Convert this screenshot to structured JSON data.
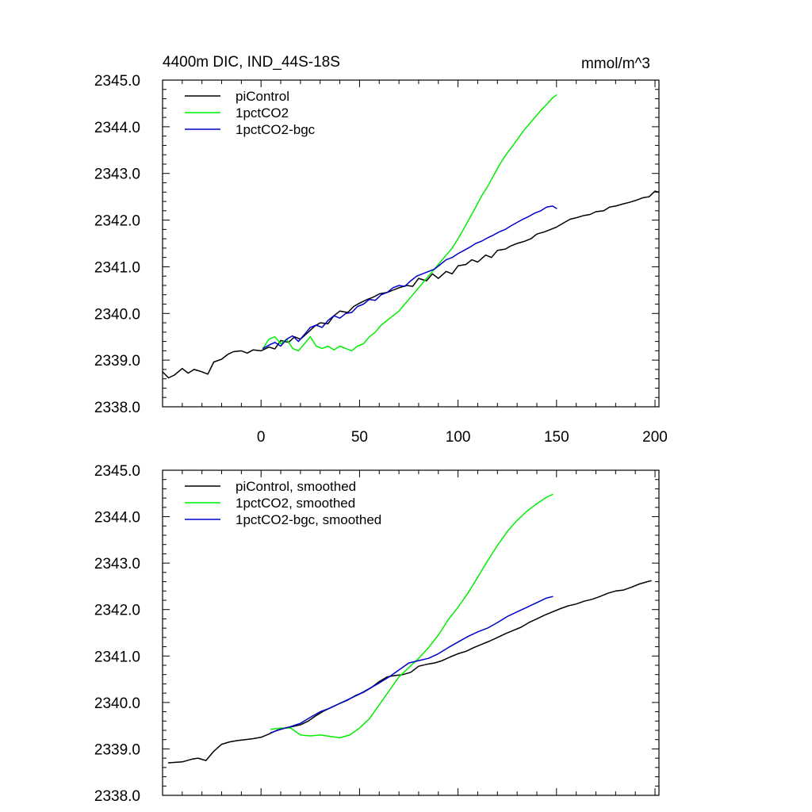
{
  "chart_data": [
    {
      "type": "line",
      "panel": "top",
      "title": "4400m DIC, IND_44S-18S",
      "units": "mmol/m^3",
      "xlabel": "",
      "ylabel": "",
      "xlim": [
        -50,
        202
      ],
      "ylim": [
        2338.0,
        2345.0
      ],
      "x_ticks": [
        0,
        50,
        100,
        150,
        200
      ],
      "x_tick_labels": [
        "0",
        "50",
        "100",
        "150",
        "200"
      ],
      "y_ticks": [
        2338.0,
        2339.0,
        2340.0,
        2341.0,
        2342.0,
        2343.0,
        2344.0,
        2345.0
      ],
      "y_tick_labels": [
        "2338.0",
        "2339.0",
        "2340.0",
        "2341.0",
        "2342.0",
        "2343.0",
        "2344.0",
        "2345.0"
      ],
      "legend_position": "top-left",
      "series": [
        {
          "name": "piControl",
          "color": "#000000",
          "x": [
            -50,
            -47,
            -44,
            -40,
            -37,
            -34,
            -30,
            -27,
            -24,
            -20,
            -17,
            -14,
            -10,
            -7,
            -4,
            0,
            4,
            7,
            10,
            14,
            17,
            20,
            24,
            27,
            30,
            34,
            37,
            40,
            44,
            47,
            50,
            54,
            57,
            60,
            64,
            67,
            70,
            74,
            77,
            80,
            84,
            87,
            90,
            94,
            97,
            100,
            104,
            107,
            110,
            114,
            117,
            120,
            124,
            127,
            130,
            134,
            137,
            140,
            144,
            147,
            150,
            154,
            157,
            160,
            164,
            167,
            170,
            174,
            177,
            180,
            184,
            187,
            190,
            194,
            197,
            200,
            202
          ],
          "y": [
            2338.75,
            2338.62,
            2338.68,
            2338.82,
            2338.72,
            2338.8,
            2338.75,
            2338.7,
            2338.96,
            2339.02,
            2339.12,
            2339.18,
            2339.2,
            2339.15,
            2339.22,
            2339.2,
            2339.28,
            2339.24,
            2339.42,
            2339.38,
            2339.5,
            2339.45,
            2339.6,
            2339.72,
            2339.8,
            2339.78,
            2339.95,
            2340.05,
            2340.02,
            2340.15,
            2340.22,
            2340.3,
            2340.35,
            2340.42,
            2340.45,
            2340.5,
            2340.55,
            2340.6,
            2340.58,
            2340.75,
            2340.7,
            2340.85,
            2340.75,
            2340.9,
            2340.85,
            2341.02,
            2341.05,
            2341.15,
            2341.1,
            2341.25,
            2341.2,
            2341.35,
            2341.38,
            2341.45,
            2341.5,
            2341.55,
            2341.6,
            2341.7,
            2341.75,
            2341.8,
            2341.85,
            2341.95,
            2342.02,
            2342.05,
            2342.1,
            2342.12,
            2342.18,
            2342.2,
            2342.28,
            2342.3,
            2342.35,
            2342.38,
            2342.42,
            2342.48,
            2342.5,
            2342.62,
            2342.6
          ]
        },
        {
          "name": "1pctCO2",
          "color": "#00ee00",
          "x": [
            1,
            4,
            7,
            10,
            13,
            16,
            19,
            22,
            25,
            28,
            31,
            34,
            37,
            40,
            43,
            46,
            49,
            52,
            55,
            58,
            61,
            64,
            67,
            70,
            73,
            76,
            79,
            82,
            85,
            88,
            91,
            94,
            97,
            100,
            103,
            106,
            109,
            112,
            115,
            118,
            121,
            124,
            127,
            130,
            133,
            136,
            139,
            142,
            145,
            148,
            150
          ],
          "y": [
            2339.25,
            2339.45,
            2339.5,
            2339.35,
            2339.45,
            2339.25,
            2339.2,
            2339.35,
            2339.5,
            2339.3,
            2339.25,
            2339.3,
            2339.22,
            2339.3,
            2339.25,
            2339.2,
            2339.3,
            2339.35,
            2339.5,
            2339.6,
            2339.75,
            2339.85,
            2339.95,
            2340.05,
            2340.2,
            2340.35,
            2340.5,
            2340.65,
            2340.8,
            2340.95,
            2341.1,
            2341.25,
            2341.4,
            2341.6,
            2341.82,
            2342.05,
            2342.28,
            2342.52,
            2342.72,
            2342.95,
            2343.18,
            2343.38,
            2343.55,
            2343.72,
            2343.9,
            2344.05,
            2344.2,
            2344.35,
            2344.48,
            2344.62,
            2344.68
          ]
        },
        {
          "name": "1pctCO2-bgc",
          "color": "#0000cc",
          "x": [
            1,
            4,
            7,
            10,
            13,
            16,
            19,
            22,
            25,
            28,
            31,
            34,
            37,
            40,
            43,
            46,
            49,
            52,
            55,
            58,
            61,
            64,
            67,
            70,
            73,
            76,
            79,
            82,
            85,
            88,
            91,
            94,
            97,
            100,
            103,
            106,
            109,
            112,
            115,
            118,
            121,
            124,
            127,
            130,
            133,
            136,
            139,
            142,
            145,
            148,
            150
          ],
          "y": [
            2339.25,
            2339.32,
            2339.38,
            2339.3,
            2339.45,
            2339.52,
            2339.4,
            2339.55,
            2339.7,
            2339.75,
            2339.7,
            2339.85,
            2339.95,
            2339.9,
            2340.0,
            2340.02,
            2340.15,
            2340.2,
            2340.3,
            2340.28,
            2340.4,
            2340.45,
            2340.55,
            2340.6,
            2340.58,
            2340.7,
            2340.8,
            2340.85,
            2340.9,
            2340.95,
            2341.05,
            2341.15,
            2341.2,
            2341.28,
            2341.35,
            2341.42,
            2341.5,
            2341.55,
            2341.62,
            2341.68,
            2341.75,
            2341.8,
            2341.88,
            2341.95,
            2342.02,
            2342.08,
            2342.15,
            2342.2,
            2342.28,
            2342.3,
            2342.25
          ]
        }
      ]
    },
    {
      "type": "line",
      "panel": "bottom",
      "title": "",
      "xlabel": "",
      "ylabel": "",
      "xlim": [
        -50,
        202
      ],
      "ylim": [
        2338.0,
        2345.0
      ],
      "x_ticks": [
        0,
        50,
        100,
        150,
        200
      ],
      "y_ticks": [
        2338.0,
        2339.0,
        2340.0,
        2341.0,
        2342.0,
        2343.0,
        2344.0,
        2345.0
      ],
      "y_tick_labels": [
        "2338.0",
        "2339.0",
        "2340.0",
        "2341.0",
        "2342.0",
        "2343.0",
        "2344.0",
        "2345.0"
      ],
      "legend_position": "top-left",
      "series": [
        {
          "name": "piControl, smoothed",
          "color": "#000000",
          "x": [
            -47,
            -40,
            -35,
            -32,
            -28,
            -24,
            -20,
            -16,
            -12,
            -8,
            -4,
            0,
            4,
            8,
            12,
            16,
            20,
            24,
            28,
            32,
            36,
            40,
            44,
            48,
            52,
            56,
            60,
            64,
            68,
            72,
            76,
            80,
            84,
            88,
            92,
            96,
            100,
            104,
            108,
            112,
            116,
            120,
            124,
            128,
            132,
            136,
            140,
            144,
            148,
            152,
            156,
            160,
            164,
            168,
            172,
            176,
            180,
            184,
            188,
            192,
            196,
            198
          ],
          "y": [
            2338.7,
            2338.72,
            2338.78,
            2338.8,
            2338.75,
            2338.95,
            2339.1,
            2339.15,
            2339.18,
            2339.2,
            2339.22,
            2339.25,
            2339.32,
            2339.4,
            2339.45,
            2339.48,
            2339.52,
            2339.6,
            2339.72,
            2339.82,
            2339.9,
            2339.98,
            2340.05,
            2340.15,
            2340.22,
            2340.32,
            2340.45,
            2340.55,
            2340.58,
            2340.6,
            2340.65,
            2340.78,
            2340.82,
            2340.85,
            2340.9,
            2340.98,
            2341.05,
            2341.1,
            2341.18,
            2341.25,
            2341.32,
            2341.4,
            2341.48,
            2341.55,
            2341.62,
            2341.72,
            2341.8,
            2341.88,
            2341.95,
            2342.02,
            2342.08,
            2342.12,
            2342.18,
            2342.22,
            2342.28,
            2342.35,
            2342.4,
            2342.42,
            2342.48,
            2342.55,
            2342.6,
            2342.62
          ]
        },
        {
          "name": "1pctCO2, smoothed",
          "color": "#00ee00",
          "x": [
            5,
            10,
            15,
            20,
            25,
            30,
            35,
            40,
            45,
            50,
            55,
            60,
            65,
            70,
            75,
            80,
            85,
            90,
            95,
            100,
            105,
            110,
            115,
            120,
            125,
            130,
            135,
            140,
            145,
            148
          ],
          "y": [
            2339.42,
            2339.45,
            2339.45,
            2339.3,
            2339.28,
            2339.3,
            2339.27,
            2339.24,
            2339.3,
            2339.45,
            2339.65,
            2339.95,
            2340.25,
            2340.55,
            2340.75,
            2340.95,
            2341.18,
            2341.45,
            2341.78,
            2342.05,
            2342.35,
            2342.7,
            2343.05,
            2343.38,
            2343.68,
            2343.92,
            2344.12,
            2344.28,
            2344.42,
            2344.48
          ]
        },
        {
          "name": "1pctCO2-bgc, smoothed",
          "color": "#0000cc",
          "x": [
            5,
            10,
            15,
            20,
            25,
            30,
            35,
            40,
            45,
            50,
            55,
            60,
            65,
            70,
            75,
            80,
            85,
            90,
            95,
            100,
            105,
            110,
            115,
            120,
            125,
            130,
            135,
            140,
            145,
            148
          ],
          "y": [
            2339.35,
            2339.42,
            2339.48,
            2339.55,
            2339.68,
            2339.8,
            2339.88,
            2339.98,
            2340.08,
            2340.18,
            2340.3,
            2340.42,
            2340.55,
            2340.7,
            2340.85,
            2340.9,
            2340.95,
            2341.05,
            2341.18,
            2341.3,
            2341.42,
            2341.52,
            2341.6,
            2341.72,
            2341.85,
            2341.95,
            2342.05,
            2342.15,
            2342.25,
            2342.28
          ]
        }
      ]
    }
  ]
}
